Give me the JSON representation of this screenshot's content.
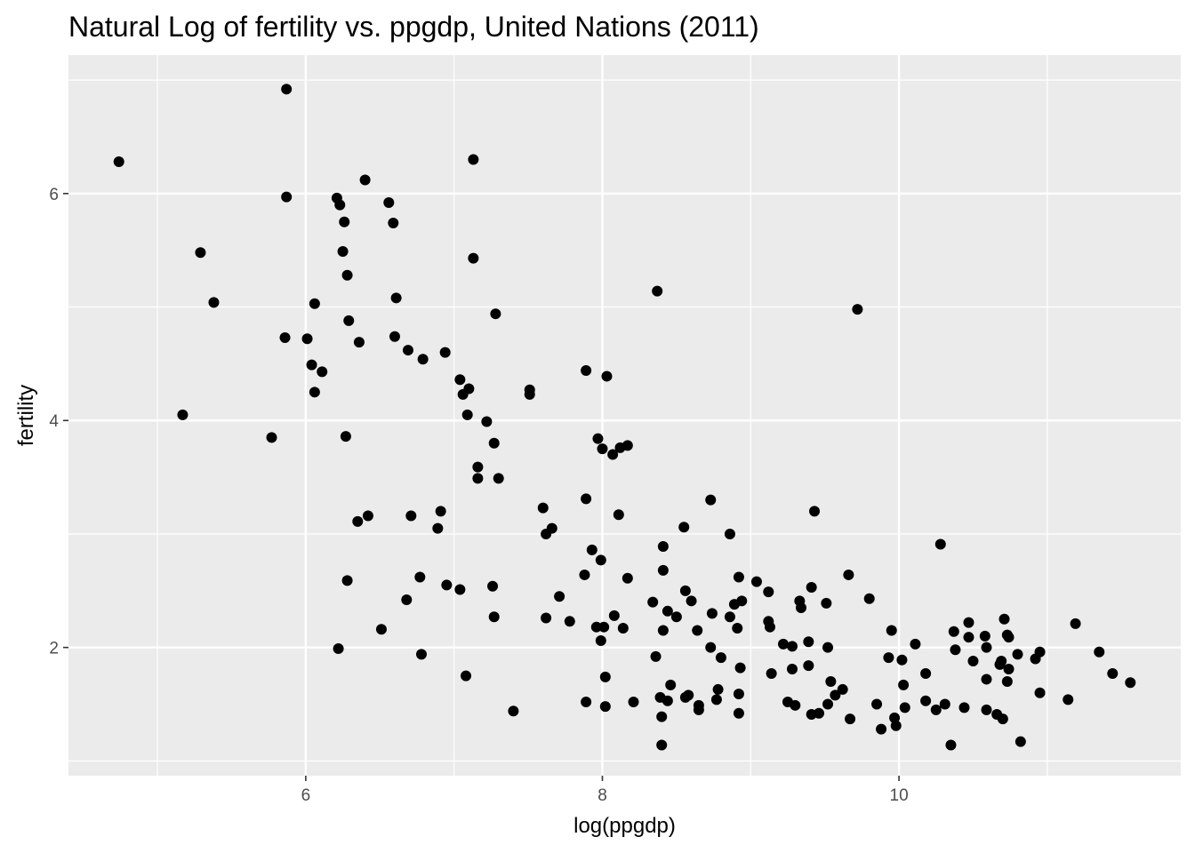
{
  "chart_data": {
    "type": "scatter",
    "title": "Natural Log of fertility vs. ppgdp, United Nations (2011)",
    "xlabel": "log(ppgdp)",
    "ylabel": "fertility",
    "xlim": [
      4.4,
      11.9
    ],
    "ylim": [
      0.87,
      7.22
    ],
    "x_ticks": [
      6,
      8,
      10
    ],
    "y_ticks": [
      2,
      4,
      6
    ],
    "x_minor": [
      5,
      7,
      9,
      11
    ],
    "y_minor": [
      1,
      3,
      5,
      7
    ],
    "grid": true,
    "panel_color": "#ebebeb",
    "point_color": "#000000",
    "points": [
      [
        4.74,
        6.28
      ],
      [
        5.87,
        6.92
      ],
      [
        5.87,
        5.97
      ],
      [
        5.29,
        5.48
      ],
      [
        5.38,
        5.04
      ],
      [
        5.17,
        4.05
      ],
      [
        5.77,
        3.85
      ],
      [
        5.86,
        4.73
      ],
      [
        6.01,
        4.72
      ],
      [
        6.04,
        4.49
      ],
      [
        6.06,
        5.03
      ],
      [
        6.06,
        4.25
      ],
      [
        6.11,
        4.43
      ],
      [
        6.21,
        5.96
      ],
      [
        6.23,
        5.9
      ],
      [
        6.26,
        5.75
      ],
      [
        6.25,
        5.49
      ],
      [
        6.28,
        5.28
      ],
      [
        6.29,
        4.88
      ],
      [
        6.36,
        4.69
      ],
      [
        6.27,
        3.86
      ],
      [
        6.4,
        6.12
      ],
      [
        6.35,
        3.11
      ],
      [
        6.42,
        3.16
      ],
      [
        6.28,
        2.59
      ],
      [
        6.22,
        1.99
      ],
      [
        6.51,
        2.16
      ],
      [
        6.56,
        5.92
      ],
      [
        6.59,
        5.74
      ],
      [
        6.61,
        5.08
      ],
      [
        6.6,
        4.74
      ],
      [
        6.69,
        4.62
      ],
      [
        6.79,
        4.54
      ],
      [
        6.71,
        3.16
      ],
      [
        6.68,
        2.42
      ],
      [
        6.77,
        2.62
      ],
      [
        6.78,
        1.94
      ],
      [
        6.94,
        4.6
      ],
      [
        6.91,
        3.2
      ],
      [
        6.89,
        3.05
      ],
      [
        6.95,
        2.55
      ],
      [
        7.04,
        2.51
      ],
      [
        7.04,
        4.36
      ],
      [
        7.06,
        4.23
      ],
      [
        7.1,
        4.28
      ],
      [
        7.09,
        4.05
      ],
      [
        7.13,
        6.3
      ],
      [
        7.13,
        5.43
      ],
      [
        7.28,
        4.94
      ],
      [
        7.22,
        3.99
      ],
      [
        7.27,
        3.8
      ],
      [
        7.16,
        3.59
      ],
      [
        7.16,
        3.49
      ],
      [
        7.3,
        3.49
      ],
      [
        7.26,
        2.54
      ],
      [
        7.27,
        2.27
      ],
      [
        7.08,
        1.75
      ],
      [
        7.4,
        1.44
      ],
      [
        7.51,
        4.27
      ],
      [
        7.51,
        4.23
      ],
      [
        7.6,
        3.23
      ],
      [
        7.62,
        3.0
      ],
      [
        7.66,
        3.05
      ],
      [
        7.62,
        2.26
      ],
      [
        7.71,
        2.45
      ],
      [
        7.78,
        2.23
      ],
      [
        7.89,
        4.44
      ],
      [
        7.89,
        3.31
      ],
      [
        7.93,
        2.86
      ],
      [
        7.88,
        2.64
      ],
      [
        7.97,
        3.84
      ],
      [
        8.0,
        3.75
      ],
      [
        8.03,
        4.39
      ],
      [
        8.07,
        3.7
      ],
      [
        8.12,
        3.76
      ],
      [
        8.17,
        3.78
      ],
      [
        8.11,
        3.17
      ],
      [
        7.99,
        2.77
      ],
      [
        8.08,
        2.28
      ],
      [
        7.96,
        2.18
      ],
      [
        8.01,
        2.18
      ],
      [
        7.99,
        2.06
      ],
      [
        8.17,
        2.61
      ],
      [
        8.14,
        2.17
      ],
      [
        8.02,
        1.74
      ],
      [
        7.89,
        1.52
      ],
      [
        8.02,
        1.48
      ],
      [
        8.21,
        1.52
      ],
      [
        8.37,
        5.14
      ],
      [
        8.41,
        2.89
      ],
      [
        8.41,
        2.68
      ],
      [
        8.34,
        2.4
      ],
      [
        8.44,
        2.32
      ],
      [
        8.5,
        2.27
      ],
      [
        8.41,
        2.15
      ],
      [
        8.36,
        1.92
      ],
      [
        8.46,
        1.67
      ],
      [
        8.39,
        1.56
      ],
      [
        8.44,
        1.53
      ],
      [
        8.4,
        1.39
      ],
      [
        8.4,
        1.14
      ],
      [
        8.55,
        3.06
      ],
      [
        8.56,
        2.5
      ],
      [
        8.6,
        2.41
      ],
      [
        8.64,
        2.15
      ],
      [
        8.56,
        1.56
      ],
      [
        8.58,
        1.58
      ],
      [
        8.65,
        1.49
      ],
      [
        8.65,
        1.45
      ],
      [
        8.73,
        3.3
      ],
      [
        8.74,
        2.3
      ],
      [
        8.73,
        2.0
      ],
      [
        8.8,
        1.91
      ],
      [
        8.78,
        1.63
      ],
      [
        8.77,
        1.54
      ],
      [
        8.86,
        3.0
      ],
      [
        8.86,
        2.27
      ],
      [
        8.89,
        2.38
      ],
      [
        8.92,
        2.62
      ],
      [
        8.94,
        2.41
      ],
      [
        8.91,
        2.17
      ],
      [
        8.93,
        1.82
      ],
      [
        8.92,
        1.59
      ],
      [
        8.92,
        1.42
      ],
      [
        9.04,
        2.58
      ],
      [
        9.12,
        2.49
      ],
      [
        9.12,
        2.23
      ],
      [
        9.13,
        2.18
      ],
      [
        9.14,
        1.77
      ],
      [
        9.22,
        2.03
      ],
      [
        9.28,
        2.01
      ],
      [
        9.28,
        1.81
      ],
      [
        9.25,
        1.52
      ],
      [
        9.3,
        1.49
      ],
      [
        9.33,
        2.41
      ],
      [
        9.34,
        2.35
      ],
      [
        9.41,
        2.53
      ],
      [
        9.43,
        3.2
      ],
      [
        9.39,
        2.05
      ],
      [
        9.39,
        1.84
      ],
      [
        9.41,
        1.41
      ],
      [
        9.46,
        1.42
      ],
      [
        9.51,
        2.39
      ],
      [
        9.52,
        2.0
      ],
      [
        9.54,
        1.7
      ],
      [
        9.52,
        1.5
      ],
      [
        9.57,
        1.58
      ],
      [
        9.62,
        1.63
      ],
      [
        9.66,
        2.64
      ],
      [
        9.67,
        1.37
      ],
      [
        9.72,
        4.98
      ],
      [
        9.8,
        2.43
      ],
      [
        9.85,
        1.5
      ],
      [
        9.88,
        1.28
      ],
      [
        9.93,
        1.91
      ],
      [
        9.95,
        2.15
      ],
      [
        9.97,
        1.38
      ],
      [
        9.98,
        1.31
      ],
      [
        10.02,
        1.89
      ],
      [
        10.03,
        1.67
      ],
      [
        10.04,
        1.47
      ],
      [
        10.11,
        2.03
      ],
      [
        10.18,
        1.77
      ],
      [
        10.18,
        1.53
      ],
      [
        10.25,
        1.45
      ],
      [
        10.28,
        2.91
      ],
      [
        10.31,
        1.5
      ],
      [
        10.35,
        1.14
      ],
      [
        10.37,
        2.14
      ],
      [
        10.38,
        1.98
      ],
      [
        10.44,
        1.47
      ],
      [
        10.47,
        2.22
      ],
      [
        10.47,
        2.09
      ],
      [
        10.5,
        1.88
      ],
      [
        10.58,
        2.1
      ],
      [
        10.59,
        2.0
      ],
      [
        10.59,
        1.72
      ],
      [
        10.59,
        1.45
      ],
      [
        10.66,
        1.41
      ],
      [
        10.68,
        1.85
      ],
      [
        10.69,
        1.88
      ],
      [
        10.7,
        1.37
      ],
      [
        10.71,
        2.25
      ],
      [
        10.73,
        2.11
      ],
      [
        10.74,
        2.09
      ],
      [
        10.74,
        1.81
      ],
      [
        10.73,
        1.7
      ],
      [
        10.8,
        1.94
      ],
      [
        10.82,
        1.17
      ],
      [
        10.92,
        1.9
      ],
      [
        10.95,
        1.96
      ],
      [
        10.95,
        1.6
      ],
      [
        11.14,
        1.54
      ],
      [
        11.19,
        2.21
      ],
      [
        11.35,
        1.96
      ],
      [
        11.44,
        1.77
      ],
      [
        11.56,
        1.69
      ]
    ]
  }
}
